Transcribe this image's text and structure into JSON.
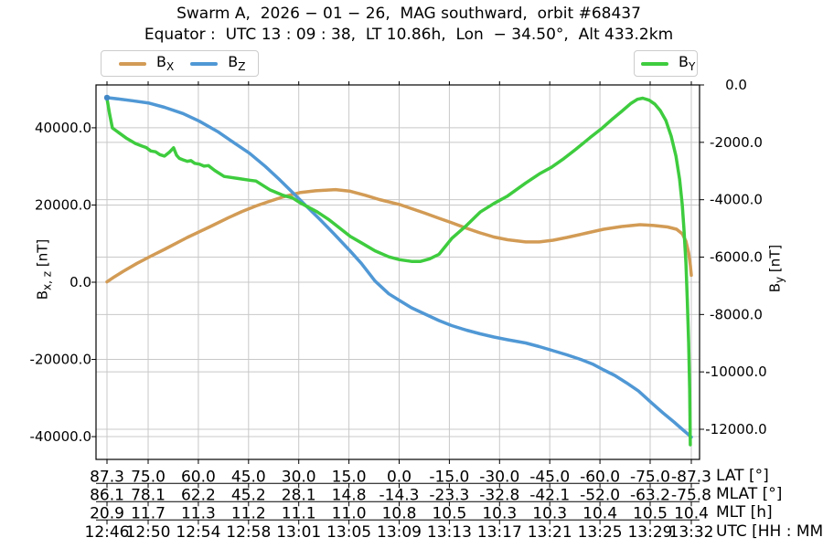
{
  "chart_data": {
    "type": "line",
    "title": "Swarm A,  2026 − 01 − 26,  MAG southward,  orbit #68437",
    "subtitle": "Equator :  UTC 13 : 09 : 38,  LT 10.86h,  Lon  − 34.50°,  Alt 433.2km",
    "grid": true,
    "x_axis": "geographic latitude, degrees, plotted from north (87.3) to south (-87.3)",
    "x_range": [
      87.3,
      -87.3
    ],
    "left_axis": {
      "label": "Bx,z [nT]",
      "range": [
        -45900,
        51100
      ],
      "ticks": [
        {
          "v": 40000,
          "label": "40000.0"
        },
        {
          "v": 20000,
          "label": "20000.0"
        },
        {
          "v": 0,
          "label": "0.0"
        },
        {
          "v": -20000,
          "label": "-20000.0"
        },
        {
          "v": -40000,
          "label": "-40000.0"
        }
      ]
    },
    "right_axis": {
      "label": "By [nT]",
      "range": [
        -13050,
        0
      ],
      "ticks": [
        {
          "v": 0,
          "label": "0.0"
        },
        {
          "v": -2000,
          "label": "-2000.0"
        },
        {
          "v": -4000,
          "label": "-4000.0"
        },
        {
          "v": -6000,
          "label": "-6000.0"
        },
        {
          "v": -8000,
          "label": "-8000.0"
        },
        {
          "v": -10000,
          "label": "-10000.0"
        },
        {
          "v": -12000,
          "label": "-12000.0"
        }
      ]
    },
    "x_tick_lats": [
      87.3,
      75,
      60,
      45,
      30,
      15,
      0,
      -15,
      -30,
      -45,
      -60,
      -75,
      -87.3
    ],
    "x_tick_rows": [
      {
        "label": "LAT [°]",
        "values": [
          "87.3",
          "75.0",
          "60.0",
          "45.0",
          "30.0",
          "15.0",
          "0.0",
          "-15.0",
          "-30.0",
          "-45.0",
          "-60.0",
          "-75.0",
          "-87.3"
        ]
      },
      {
        "label": "MLAT [°]",
        "values": [
          "86.1",
          "78.1",
          "62.2",
          "45.2",
          "28.1",
          "14.8",
          "-14.3",
          "-23.3",
          "-32.8",
          "-42.1",
          "-52.0",
          "-63.2",
          "-75.8"
        ]
      },
      {
        "label": "MLT [h]",
        "values": [
          "20.9",
          "11.7",
          "11.3",
          "11.2",
          "11.1",
          "11.0",
          "10.8",
          "10.5",
          "10.3",
          "10.3",
          "10.4",
          "10.5",
          "10.4"
        ]
      },
      {
        "label": "UTC [HH : MM]",
        "values": [
          "12:46",
          "12:50",
          "12:54",
          "12:58",
          "13:01",
          "13:05",
          "13:09",
          "13:13",
          "13:17",
          "13:21",
          "13:25",
          "13:29",
          "13:32"
        ]
      }
    ],
    "series": [
      {
        "name": "BX",
        "axis": "left",
        "color": "#D29B55",
        "points": [
          [
            87.3,
            100
          ],
          [
            85.1,
            1400
          ],
          [
            82.4,
            2840
          ],
          [
            78.3,
            4900
          ],
          [
            74.2,
            6750
          ],
          [
            70.1,
            8520
          ],
          [
            63.3,
            11600
          ],
          [
            56.4,
            14440
          ],
          [
            51.0,
            16730
          ],
          [
            46.9,
            18340
          ],
          [
            42.8,
            19760
          ],
          [
            38.7,
            20950
          ],
          [
            34.6,
            22130
          ],
          [
            29.7,
            23200
          ],
          [
            25.0,
            23670
          ],
          [
            19.0,
            23980
          ],
          [
            14.6,
            23560
          ],
          [
            10.0,
            22490
          ],
          [
            5.9,
            21420
          ],
          [
            -0.1,
            20120
          ],
          [
            -3.7,
            19060
          ],
          [
            -7.8,
            17870
          ],
          [
            -11.9,
            16570
          ],
          [
            -15.7,
            15390
          ],
          [
            -20.1,
            13970
          ],
          [
            -24.2,
            12780
          ],
          [
            -28.3,
            11720
          ],
          [
            -32.4,
            11010
          ],
          [
            -37.8,
            10420
          ],
          [
            -41.9,
            10420
          ],
          [
            -46.0,
            10890
          ],
          [
            -50.1,
            11600
          ],
          [
            -55.6,
            12660
          ],
          [
            -61.1,
            13730
          ],
          [
            -66.5,
            14440
          ],
          [
            -72.0,
            14910
          ],
          [
            -76.1,
            14680
          ],
          [
            -80.2,
            14320
          ],
          [
            -82.9,
            13730
          ],
          [
            -84.6,
            12540
          ],
          [
            -85.7,
            10650
          ],
          [
            -86.5,
            7570
          ],
          [
            -87.0,
            4500
          ],
          [
            -87.3,
            1800
          ]
        ]
      },
      {
        "name": "BZ",
        "axis": "left",
        "color": "#5098D5",
        "points": [
          [
            87.3,
            47800
          ],
          [
            83.8,
            47450
          ],
          [
            79.7,
            47000
          ],
          [
            74.7,
            46400
          ],
          [
            70.1,
            45300
          ],
          [
            64.6,
            43700
          ],
          [
            59.7,
            41700
          ],
          [
            54.2,
            39000
          ],
          [
            48.8,
            35800
          ],
          [
            44.7,
            33400
          ],
          [
            40.0,
            30000
          ],
          [
            35.9,
            26700
          ],
          [
            31.8,
            23200
          ],
          [
            27.7,
            19700
          ],
          [
            23.6,
            16200
          ],
          [
            19.5,
            12550
          ],
          [
            14.6,
            8050
          ],
          [
            11.3,
            4900
          ],
          [
            7.2,
            300
          ],
          [
            3.1,
            -3000
          ],
          [
            -0.1,
            -4730
          ],
          [
            -3.7,
            -6630
          ],
          [
            -7.8,
            -8280
          ],
          [
            -11.9,
            -9940
          ],
          [
            -15.7,
            -11240
          ],
          [
            -20.1,
            -12430
          ],
          [
            -24.2,
            -13370
          ],
          [
            -28.3,
            -14200
          ],
          [
            -32.4,
            -14910
          ],
          [
            -37.8,
            -15740
          ],
          [
            -41.9,
            -16690
          ],
          [
            -46.0,
            -17750
          ],
          [
            -50.1,
            -18820
          ],
          [
            -54.2,
            -20000
          ],
          [
            -57.8,
            -21190
          ],
          [
            -61.1,
            -22720
          ],
          [
            -64.4,
            -24140
          ],
          [
            -67.9,
            -26040
          ],
          [
            -71.5,
            -28170
          ],
          [
            -75.6,
            -31400
          ],
          [
            -78.8,
            -33840
          ],
          [
            -82.1,
            -36210
          ],
          [
            -84.6,
            -38100
          ],
          [
            -86.2,
            -39290
          ],
          [
            -87.3,
            -40120
          ]
        ]
      },
      {
        "name": "BY",
        "axis": "right",
        "color": "#3ECC3E",
        "points": [
          [
            87.3,
            -480
          ],
          [
            86.5,
            -1020
          ],
          [
            85.7,
            -1500
          ],
          [
            83.8,
            -1660
          ],
          [
            81.6,
            -1850
          ],
          [
            78.8,
            -2040
          ],
          [
            76.9,
            -2130
          ],
          [
            75.6,
            -2180
          ],
          [
            74.2,
            -2300
          ],
          [
            72.8,
            -2330
          ],
          [
            71.5,
            -2430
          ],
          [
            70.1,
            -2480
          ],
          [
            68.7,
            -2350
          ],
          [
            67.4,
            -2190
          ],
          [
            66.5,
            -2450
          ],
          [
            65.7,
            -2560
          ],
          [
            64.6,
            -2610
          ],
          [
            63.3,
            -2660
          ],
          [
            62.2,
            -2640
          ],
          [
            61.1,
            -2730
          ],
          [
            59.7,
            -2760
          ],
          [
            58.3,
            -2830
          ],
          [
            57.0,
            -2810
          ],
          [
            55.1,
            -2980
          ],
          [
            52.3,
            -3190
          ],
          [
            48.2,
            -3260
          ],
          [
            44.7,
            -3320
          ],
          [
            42.8,
            -3350
          ],
          [
            38.7,
            -3650
          ],
          [
            34.6,
            -3850
          ],
          [
            31.8,
            -3940
          ],
          [
            29.7,
            -4100
          ],
          [
            24.5,
            -4420
          ],
          [
            20.9,
            -4700
          ],
          [
            18.2,
            -4950
          ],
          [
            14.6,
            -5280
          ],
          [
            11.3,
            -5500
          ],
          [
            7.2,
            -5780
          ],
          [
            3.1,
            -5990
          ],
          [
            -0.1,
            -6090
          ],
          [
            -3.7,
            -6150
          ],
          [
            -6.4,
            -6150
          ],
          [
            -9.1,
            -6060
          ],
          [
            -11.9,
            -5900
          ],
          [
            -15.7,
            -5350
          ],
          [
            -20.1,
            -4900
          ],
          [
            -24.2,
            -4430
          ],
          [
            -28.3,
            -4130
          ],
          [
            -32.4,
            -3870
          ],
          [
            -37.8,
            -3420
          ],
          [
            -41.9,
            -3100
          ],
          [
            -45.5,
            -2870
          ],
          [
            -49.3,
            -2560
          ],
          [
            -52.9,
            -2230
          ],
          [
            -57.0,
            -1840
          ],
          [
            -60.5,
            -1520
          ],
          [
            -63.8,
            -1180
          ],
          [
            -66.5,
            -920
          ],
          [
            -69.3,
            -640
          ],
          [
            -71.2,
            -500
          ],
          [
            -72.8,
            -460
          ],
          [
            -74.7,
            -530
          ],
          [
            -76.4,
            -670
          ],
          [
            -78.0,
            -890
          ],
          [
            -79.7,
            -1240
          ],
          [
            -81.3,
            -1790
          ],
          [
            -82.7,
            -2480
          ],
          [
            -83.8,
            -3290
          ],
          [
            -84.6,
            -4180
          ],
          [
            -85.1,
            -5000
          ],
          [
            -85.7,
            -6200
          ],
          [
            -86.1,
            -7500
          ],
          [
            -86.5,
            -9000
          ],
          [
            -86.8,
            -10600
          ],
          [
            -87.0,
            -12540
          ]
        ]
      }
    ]
  },
  "legend": {
    "left_items": [
      {
        "base": "B",
        "sub": "X"
      },
      {
        "base": "B",
        "sub": "Z"
      }
    ],
    "right_items": [
      {
        "base": "B",
        "sub": "Y"
      }
    ]
  },
  "axes_labels": {
    "left_base": "B",
    "left_sub": "x, z",
    "left_unit": " [nT]",
    "right_base": "B",
    "right_sub": "y",
    "right_unit": " [nT]"
  }
}
